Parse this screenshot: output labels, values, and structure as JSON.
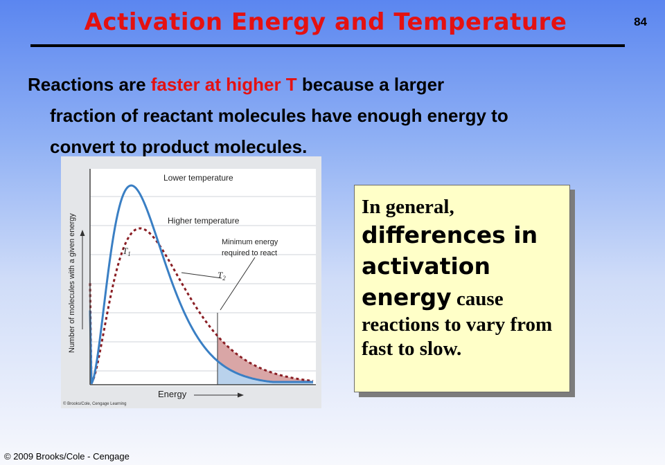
{
  "slide": {
    "title": "Activation Energy and Temperature",
    "number": "84",
    "intro": {
      "part1": "Reactions are ",
      "highlight": "faster at higher T",
      "part2": " because a larger",
      "line2": "fraction of reactant molecules have enough energy to",
      "line3": "convert to product molecules."
    },
    "figure": {
      "ylabel": "Number of molecules with a given energy",
      "xlabel": "Energy",
      "label_lower": "Lower temperature",
      "label_higher": "Higher temperature",
      "label_min_line1": "Minimum energy",
      "label_min_line2": "required to react",
      "t1": "T",
      "t1_sub": "1",
      "t2": "T",
      "t2_sub": "2",
      "credit": "© Brooks/Cole, Cengage Learning",
      "colors": {
        "lower": "#3a7fc4",
        "higher": "#8a1e24",
        "fill_lower": "#b9d2ec",
        "fill_higher": "#d9a6a6"
      }
    },
    "callout": {
      "line1": "In general,",
      "emph": "differences in activation energy",
      "tail1": " cause",
      "tail2": "reactions to vary from fast to slow."
    },
    "footer": "© 2009 Brooks/Cole - Cengage"
  }
}
